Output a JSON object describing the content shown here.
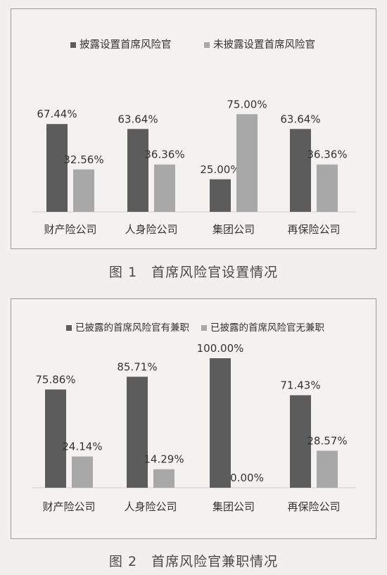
{
  "figures": [
    {
      "caption_num": "图 1",
      "caption_text": "首席风险官设置情况",
      "colors": {
        "dark": "#5c5c5c",
        "light": "#a8a8a8"
      },
      "chart_data": {
        "type": "bar",
        "categories": [
          "财产险公司",
          "人身险公司",
          "集团公司",
          "再保险公司"
        ],
        "series": [
          {
            "name": "披露设置首席风险官",
            "values": [
              67.44,
              63.64,
              25.0,
              63.64
            ],
            "labels": [
              "67.44%",
              "63.64%",
              "25.00%",
              "63.64%"
            ]
          },
          {
            "name": "未披露设置首席风险官",
            "values": [
              32.56,
              36.36,
              75.0,
              36.36
            ],
            "labels": [
              "32.56%",
              "36.36%",
              "75.00%",
              "36.36%"
            ]
          }
        ],
        "ylim": [
          0,
          100
        ],
        "grid": false,
        "legend": "top"
      }
    },
    {
      "caption_num": "图 2",
      "caption_text": "首席风险官兼职情况",
      "colors": {
        "dark": "#5c5c5c",
        "light": "#a8a8a8"
      },
      "chart_data": {
        "type": "bar",
        "categories": [
          "财产险公司",
          "人身险公司",
          "集团公司",
          "再保险公司"
        ],
        "series": [
          {
            "name": "已披露的首席风险官有兼职",
            "values": [
              75.86,
              85.71,
              100.0,
              71.43
            ],
            "labels": [
              "75.86%",
              "85.71%",
              "100.00%",
              "71.43%"
            ]
          },
          {
            "name": "已披露的首席风险官无兼职",
            "values": [
              24.14,
              14.29,
              0.0,
              28.57
            ],
            "labels": [
              "24.14%",
              "14.29%",
              "0.00%",
              "28.57%"
            ]
          }
        ],
        "ylim": [
          0,
          100
        ],
        "grid": false,
        "legend": "top"
      }
    }
  ]
}
